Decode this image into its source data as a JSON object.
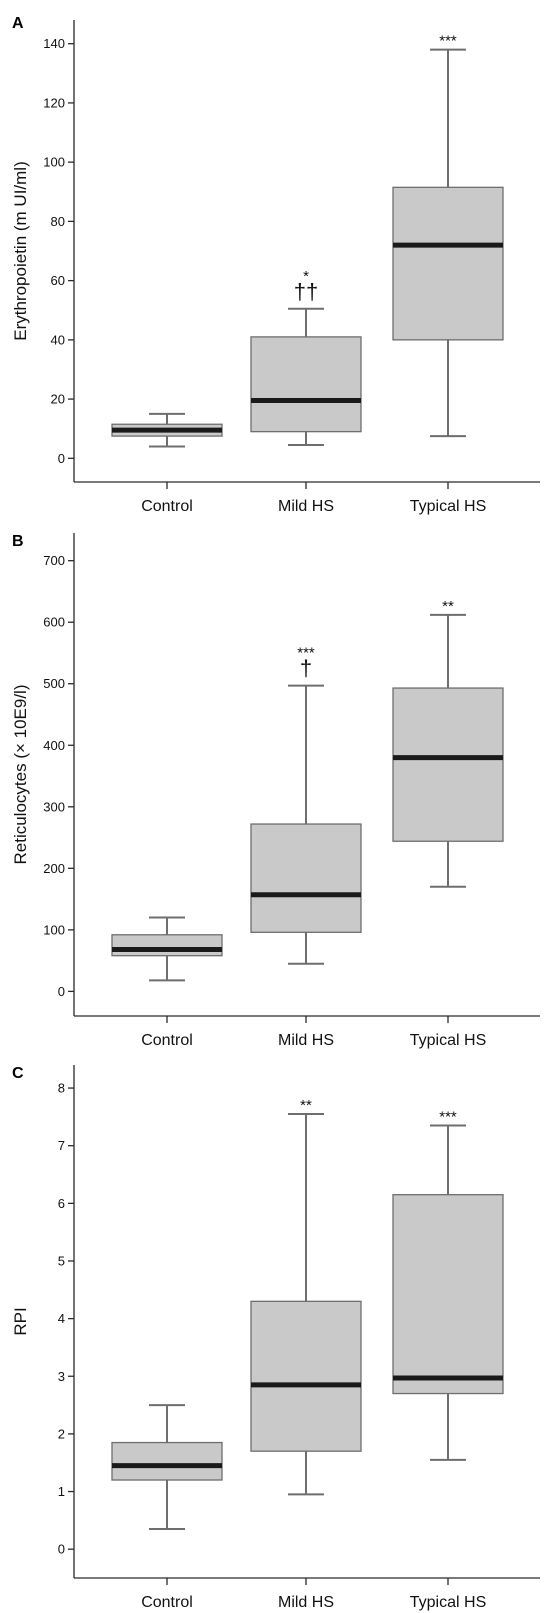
{
  "chart_data": [
    {
      "panel": "A",
      "type": "box",
      "ylabel": "Erythropoietin (m UI/ml)",
      "ylim": [
        -8,
        148
      ],
      "yticks": [
        0,
        20,
        40,
        60,
        80,
        100,
        120,
        140
      ],
      "categories": [
        "Control",
        "Mild HS",
        "Typical HS"
      ],
      "boxes": [
        {
          "category": "Control",
          "min": 4,
          "q1": 7.5,
          "median": 9.5,
          "q3": 11.5,
          "max": 15,
          "marks": []
        },
        {
          "category": "Mild HS",
          "min": 4.5,
          "q1": 9,
          "median": 19.5,
          "q3": 41,
          "max": 50.5,
          "marks": [
            "*",
            "††"
          ]
        },
        {
          "category": "Typical HS",
          "min": 7.5,
          "q1": 40,
          "median": 72,
          "q3": 91.5,
          "max": 138,
          "marks": [
            "***"
          ]
        }
      ]
    },
    {
      "panel": "B",
      "type": "box",
      "ylabel": "Reticulocytes (× 10E9/l)",
      "ylim": [
        -40,
        745
      ],
      "yticks": [
        0,
        100,
        200,
        300,
        400,
        500,
        600,
        700
      ],
      "categories": [
        "Control",
        "Mild HS",
        "Typical HS"
      ],
      "boxes": [
        {
          "category": "Control",
          "min": 18,
          "q1": 58,
          "median": 68,
          "q3": 92,
          "max": 120,
          "marks": []
        },
        {
          "category": "Mild HS",
          "min": 45,
          "q1": 96,
          "median": 157,
          "q3": 272,
          "max": 497,
          "marks": [
            "***",
            "†"
          ]
        },
        {
          "category": "Typical HS",
          "min": 170,
          "q1": 244,
          "median": 380,
          "q3": 493,
          "max": 612,
          "marks": [
            "**"
          ]
        }
      ]
    },
    {
      "panel": "C",
      "type": "box",
      "ylabel": "RPI",
      "ylim": [
        -0.5,
        8.4
      ],
      "yticks": [
        0,
        1,
        2,
        3,
        4,
        5,
        6,
        7,
        8
      ],
      "categories": [
        "Control",
        "Mild HS",
        "Typical HS"
      ],
      "boxes": [
        {
          "category": "Control",
          "min": 0.35,
          "q1": 1.2,
          "median": 1.45,
          "q3": 1.85,
          "max": 2.5,
          "marks": []
        },
        {
          "category": "Mild HS",
          "min": 0.95,
          "q1": 1.7,
          "median": 2.85,
          "q3": 4.3,
          "max": 7.55,
          "marks": [
            "**"
          ]
        },
        {
          "category": "Typical HS",
          "min": 1.55,
          "q1": 2.7,
          "median": 2.97,
          "q3": 6.15,
          "max": 7.35,
          "marks": [
            "***"
          ]
        }
      ]
    }
  ]
}
